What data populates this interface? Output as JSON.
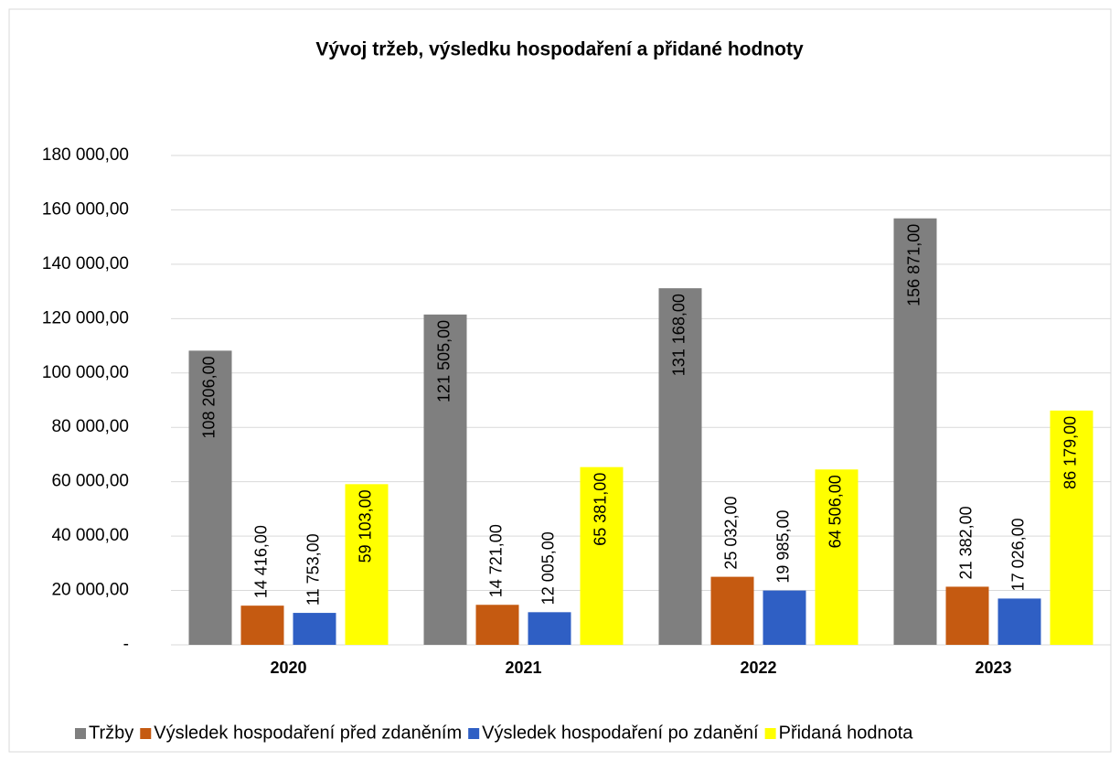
{
  "chart_data": {
    "type": "bar",
    "title": "Vývoj tržeb, výsledku hospodaření a přidané hodnoty",
    "categories": [
      "2020",
      "2021",
      "2022",
      "2023"
    ],
    "series": [
      {
        "name": "Tržby",
        "color": "#7f7f7f",
        "values": [
          108206,
          121505,
          131168,
          156871
        ],
        "value_labels": [
          "108 206,00",
          "121 505,00",
          "131 168,00",
          "156 871,00"
        ]
      },
      {
        "name": "Výsledek hospodaření před zdaněním",
        "color": "#c55a11",
        "values": [
          14416,
          14721,
          25032,
          21382
        ],
        "value_labels": [
          "14 416,00",
          "14 721,00",
          "25 032,00",
          "21 382,00"
        ]
      },
      {
        "name": "Výsledek hospodaření po zdanění",
        "color": "#2f5fc4",
        "values": [
          11753,
          12005,
          19985,
          17026
        ],
        "value_labels": [
          "11 753,00",
          "12 005,00",
          "19 985,00",
          "17 026,00"
        ]
      },
      {
        "name": "Přidaná hodnota",
        "color": "#ffff00",
        "values": [
          59103,
          65381,
          64506,
          86179
        ],
        "value_labels": [
          "59 103,00",
          "65 381,00",
          "64 506,00",
          "86 179,00"
        ]
      }
    ],
    "ylim": [
      0,
      180000
    ],
    "yticks": [
      {
        "value": 0,
        "label": "-"
      },
      {
        "value": 20000,
        "label": "20 000,00"
      },
      {
        "value": 40000,
        "label": "40 000,00"
      },
      {
        "value": 60000,
        "label": "60 000,00"
      },
      {
        "value": 80000,
        "label": "80 000,00"
      },
      {
        "value": 100000,
        "label": "100 000,00"
      },
      {
        "value": 120000,
        "label": "120 000,00"
      },
      {
        "value": 140000,
        "label": "140 000,00"
      },
      {
        "value": 160000,
        "label": "160 000,00"
      },
      {
        "value": 180000,
        "label": "180 000,00"
      }
    ],
    "grid": true,
    "legend": "bottom"
  }
}
